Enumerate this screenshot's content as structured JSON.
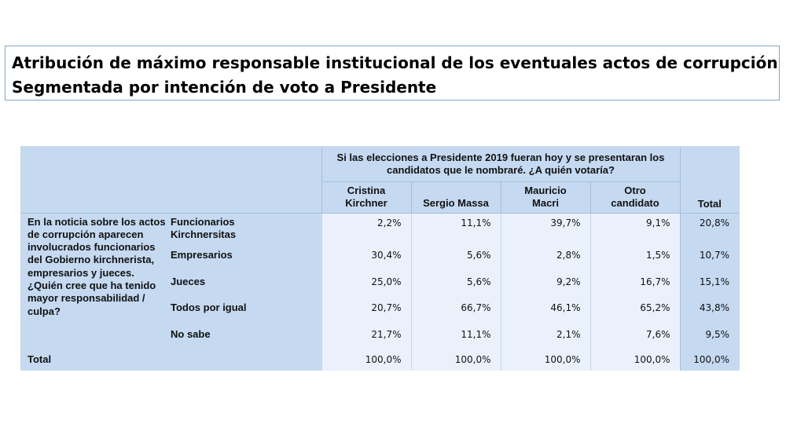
{
  "title": {
    "line1": "Atribución de máximo responsable institucional de los eventuales actos de corrupción",
    "line2": "Segmentada por intención de voto a Presidente"
  },
  "table": {
    "question_header": "Si las elecciones a Presidente 2019 fueran hoy y se presentaran los candidatos que le nombraré. ¿A quién votaría?",
    "columns": [
      {
        "line1": "Cristina",
        "line2": "Kirchner"
      },
      {
        "line1": "",
        "line2": "Sergio Massa"
      },
      {
        "line1": "Mauricio",
        "line2": "Macri"
      },
      {
        "line1": "Otro",
        "line2": "candidato"
      }
    ],
    "total_header": "Total",
    "row_question": "En la noticia sobre los actos de corrupción aparecen involucrados funcionarios del Gobierno kirchnerista, empresarios y jueces. ¿Quién cree que ha tenido mayor responsabilidad / culpa?",
    "rows": [
      {
        "label1": "Funcionarios",
        "label2": "Kirchnersitas",
        "values": [
          "2,2%",
          "11,1%",
          "39,7%",
          "9,1%"
        ],
        "total": "20,8%"
      },
      {
        "label1": "Empresarios",
        "label2": "",
        "values": [
          "30,4%",
          "5,6%",
          "2,8%",
          "1,5%"
        ],
        "total": "10,7%"
      },
      {
        "label1": "Jueces",
        "label2": "",
        "values": [
          "25,0%",
          "5,6%",
          "9,2%",
          "16,7%"
        ],
        "total": "15,1%"
      },
      {
        "label1": "Todos por igual",
        "label2": "",
        "values": [
          "20,7%",
          "66,7%",
          "46,1%",
          "65,2%"
        ],
        "total": "43,8%"
      },
      {
        "label1": "No sabe",
        "label2": "",
        "values": [
          "21,7%",
          "11,1%",
          "2,1%",
          "7,6%"
        ],
        "total": "9,5%"
      }
    ],
    "total_row": {
      "label": "Total",
      "values": [
        "100,0%",
        "100,0%",
        "100,0%",
        "100,0%"
      ],
      "total": "100,0%"
    }
  }
}
